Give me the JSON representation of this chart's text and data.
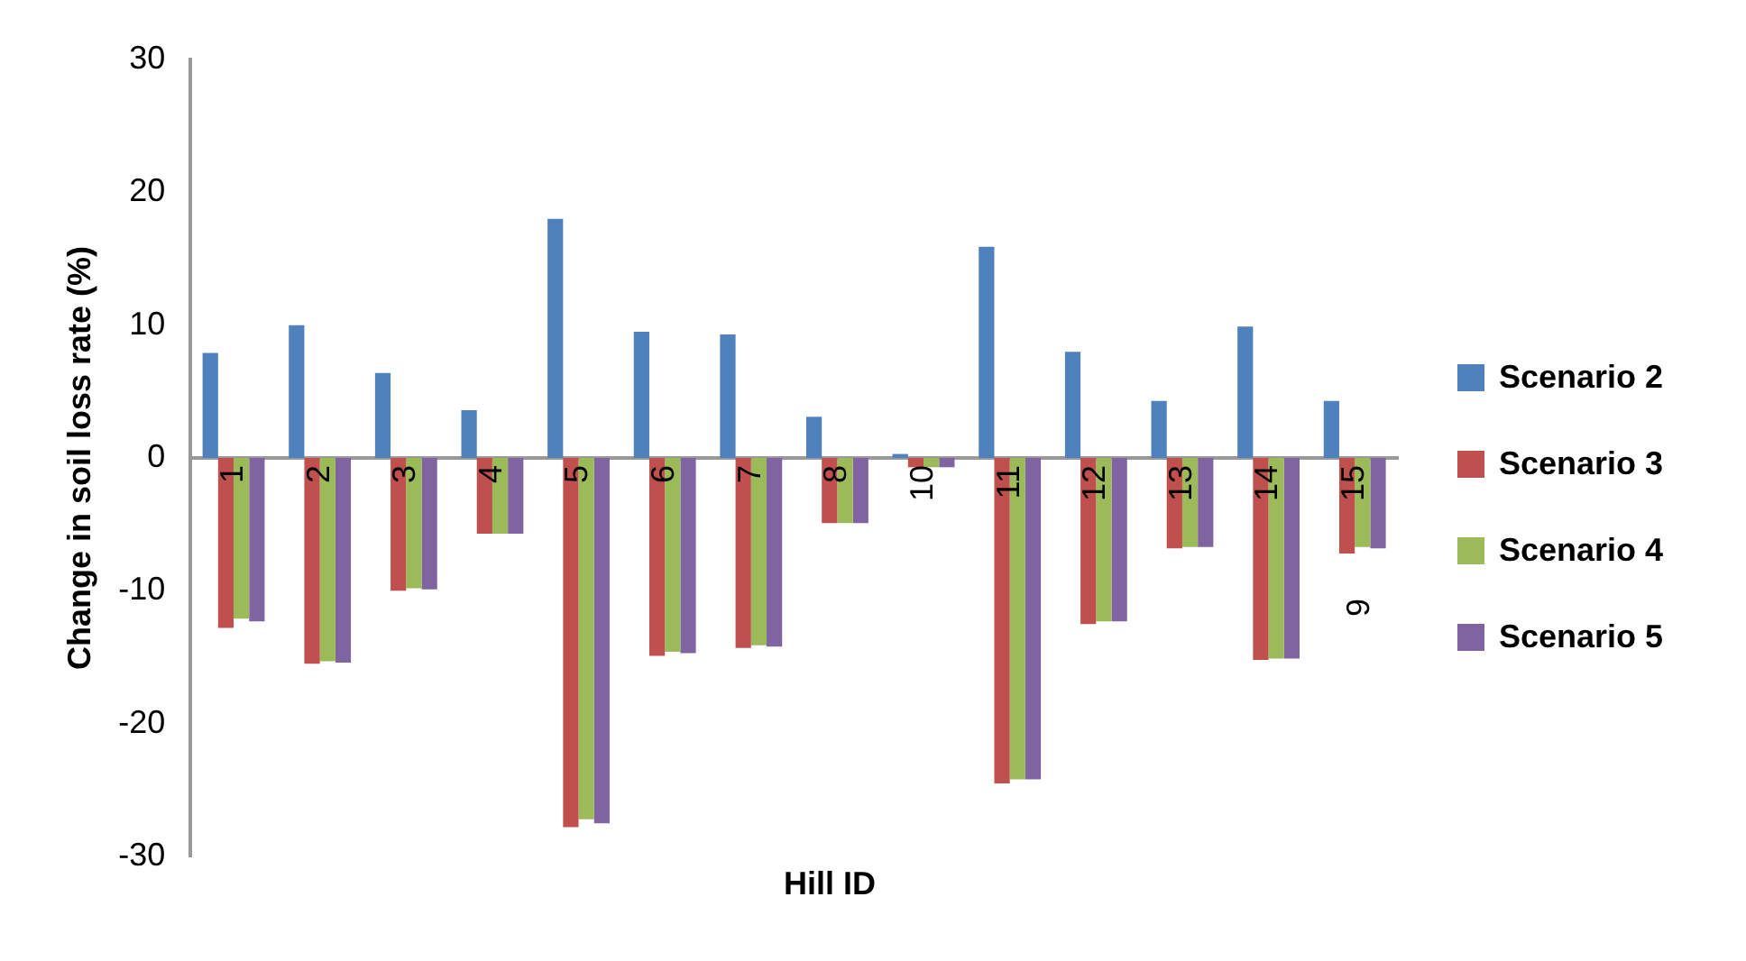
{
  "chart_data": {
    "type": "bar",
    "xlabel": "Hill ID",
    "ylabel": "Change in soil loss rate (%)",
    "categories": [
      "1",
      "2",
      "3",
      "4",
      "5",
      "6",
      "7",
      "8",
      "10",
      "11",
      "12",
      "13",
      "14",
      "15"
    ],
    "series": [
      {
        "name": "Scenario 2",
        "color": "#4f81bd",
        "values": [
          7.9,
          10.0,
          6.4,
          3.6,
          18.0,
          9.5,
          9.3,
          3.1,
          0.3,
          15.9,
          8.0,
          4.3,
          9.9,
          4.3
        ]
      },
      {
        "name": "Scenario 3",
        "color": "#c0504d",
        "values": [
          -12.8,
          -15.5,
          -10.0,
          -5.7,
          -27.8,
          -14.9,
          -14.3,
          -4.9,
          -0.7,
          -24.5,
          -12.5,
          -6.8,
          -15.2,
          -7.2
        ]
      },
      {
        "name": "Scenario 4",
        "color": "#9bbb59",
        "values": [
          -12.1,
          -15.3,
          -9.8,
          -5.7,
          -27.2,
          -14.6,
          -14.1,
          -4.9,
          -0.7,
          -24.2,
          -12.3,
          -6.7,
          -15.1,
          -6.7
        ]
      },
      {
        "name": "Scenario 5",
        "color": "#8064a2",
        "values": [
          -12.3,
          -15.4,
          -9.9,
          -5.7,
          -27.5,
          -14.7,
          -14.2,
          -4.9,
          -0.7,
          -24.2,
          -12.3,
          -6.7,
          -15.1,
          -6.8
        ]
      }
    ],
    "ylim": [
      -30,
      30
    ],
    "yticks": [
      -30,
      -20,
      -10,
      0,
      10,
      20,
      30
    ],
    "grid": false,
    "legend": "right",
    "annotations": [
      "9"
    ]
  }
}
